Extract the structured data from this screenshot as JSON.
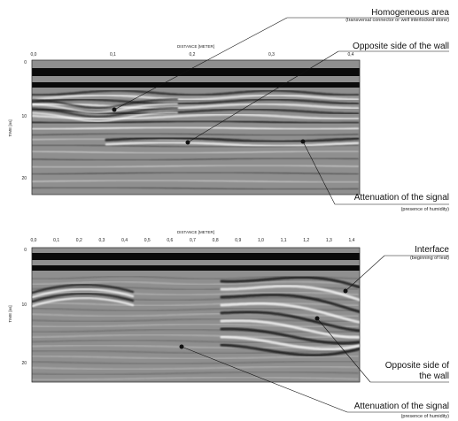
{
  "panels": [
    {
      "id": "top",
      "x_axis_label": "DISTANCE [METER]",
      "y_axis_label": "TIME [ns]",
      "x_ticks": [
        "0,0",
        "0,1",
        "0,2",
        "0,3",
        "0,4"
      ],
      "y_ticks": [
        "0",
        "10",
        "20"
      ],
      "annotations": [
        {
          "title": "Homogeneous area",
          "subtitle": "(transversal connector or well interlocked stone)"
        },
        {
          "title": "Opposite side of the wall",
          "subtitle": ""
        },
        {
          "title": "Attenuation of the signal",
          "subtitle": "(presence of humidity)"
        }
      ]
    },
    {
      "id": "bottom",
      "x_axis_label": "DISTANCE [METER]",
      "y_axis_label": "TIME [ns]",
      "x_ticks": [
        "0,0",
        "0,1",
        "0,2",
        "0,3",
        "0,4",
        "0,5",
        "0,6",
        "0,7",
        "0,8",
        "0,9",
        "1,0",
        "1,1",
        "1,2",
        "1,3",
        "1,4"
      ],
      "y_ticks": [
        "0",
        "10",
        "20"
      ],
      "annotations": [
        {
          "title": "Interface",
          "subtitle": "(beginning of leaf)"
        },
        {
          "title": "Opposite side of",
          "title2": "the wall",
          "subtitle": ""
        },
        {
          "title": "Attenuation of the signal",
          "subtitle": "(presence of humidity)"
        }
      ]
    }
  ],
  "colors": {
    "background": "#ffffff",
    "ink": "#111111",
    "radar_mid": "#8f8f8f"
  }
}
